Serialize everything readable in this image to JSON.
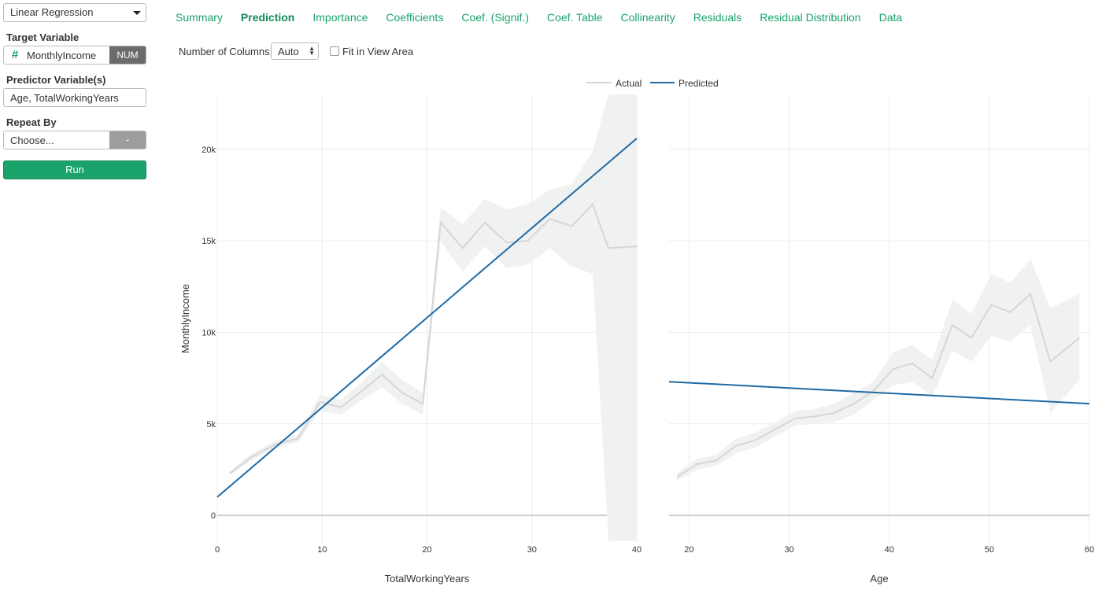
{
  "sidebar": {
    "model_select": "Linear Regression",
    "target_label": "Target Variable",
    "target_value": "MonthlyIncome",
    "target_type": "NUM",
    "target_icon": "hash-icon",
    "predictor_label": "Predictor Variable(s)",
    "predictor_value": "Age, TotalWorkingYears",
    "repeat_label": "Repeat By",
    "repeat_placeholder": "Choose...",
    "repeat_clear": "-",
    "run_label": "Run"
  },
  "tabs": [
    "Summary",
    "Prediction",
    "Importance",
    "Coefficients",
    "Coef. (Signif.)",
    "Coef. Table",
    "Collinearity",
    "Residuals",
    "Residual Distribution",
    "Data"
  ],
  "active_tab": "Prediction",
  "options": {
    "columns_label": "Number of Columns:",
    "columns_value": "Auto",
    "fit_label": "Fit in View Area",
    "fit_checked": false
  },
  "colors": {
    "accent": "#1aa36b",
    "actual": "#d6d6d6",
    "predicted": "#1f6aa5",
    "band": "#f0f2f1"
  },
  "chart_data": [
    {
      "type": "line",
      "xlabel": "TotalWorkingYears",
      "ylabel": "MonthlyIncome",
      "xlim": [
        0,
        40
      ],
      "ylim": [
        -1500,
        23000
      ],
      "xticks": [
        0,
        10,
        20,
        30,
        40
      ],
      "yticks": [
        0,
        5000,
        10000,
        15000,
        20000
      ],
      "ytick_labels": [
        "0",
        "5k",
        "10k",
        "15k",
        "20k"
      ],
      "grid": true,
      "legend": "top-center",
      "series": [
        {
          "name": "Actual",
          "x": [
            1.2,
            3.3,
            5.6,
            7.7,
            9.8,
            11.8,
            13.8,
            15.7,
            17.6,
            19.6,
            21.3,
            23.4,
            25.5,
            27.6,
            29.6,
            31.7,
            33.8,
            35.8,
            37.3,
            40
          ],
          "y": [
            2300,
            3200,
            3900,
            4200,
            6200,
            5900,
            6800,
            7700,
            6700,
            6100,
            16000,
            14600,
            16000,
            14900,
            15000,
            16200,
            15800,
            17000,
            14600,
            14700
          ],
          "lower": [
            2200,
            3000,
            3700,
            4000,
            5700,
            5500,
            6300,
            7000,
            6100,
            5500,
            15000,
            13300,
            14700,
            13500,
            13700,
            14600,
            13600,
            13200,
            -1400,
            -1400
          ],
          "upper": [
            2400,
            3400,
            4100,
            4400,
            6600,
            6300,
            7300,
            8400,
            7400,
            6700,
            16800,
            15900,
            17300,
            16700,
            17000,
            17800,
            18100,
            19900,
            23000,
            23000
          ]
        },
        {
          "name": "Predicted",
          "x": [
            0,
            40
          ],
          "y": [
            1000,
            20600
          ]
        }
      ]
    },
    {
      "type": "line",
      "xlabel": "Age",
      "ylabel": "MonthlyIncome",
      "xlim": [
        18,
        60
      ],
      "ylim": [
        -1500,
        23000
      ],
      "xticks": [
        20,
        30,
        40,
        50,
        60
      ],
      "yticks": [
        0,
        5000,
        10000,
        15000,
        20000
      ],
      "grid": true,
      "series": [
        {
          "name": "Actual",
          "x": [
            18.8,
            20.8,
            22.7,
            24.7,
            26.6,
            28.6,
            30.6,
            32.5,
            34.5,
            36.5,
            38.4,
            40.4,
            42.3,
            44.3,
            46.3,
            48.2,
            50.2,
            52.1,
            54.1,
            56.1,
            59.0
          ],
          "y": [
            2100,
            2800,
            3000,
            3800,
            4100,
            4700,
            5300,
            5400,
            5600,
            6100,
            6800,
            8000,
            8300,
            7500,
            10400,
            9700,
            11500,
            11100,
            12100,
            8400,
            9700
          ],
          "lower": [
            1900,
            2500,
            2700,
            3400,
            3700,
            4300,
            4900,
            5000,
            5100,
            5500,
            6300,
            7100,
            7300,
            6500,
            9000,
            8400,
            9800,
            9500,
            10400,
            5600,
            7400
          ],
          "upper": [
            2300,
            3100,
            3300,
            4200,
            4500,
            5100,
            5700,
            5800,
            6100,
            6700,
            7300,
            8900,
            9300,
            8500,
            11800,
            11000,
            13200,
            12700,
            14000,
            11300,
            12100
          ]
        },
        {
          "name": "Predicted",
          "x": [
            18,
            60
          ],
          "y": [
            7300,
            6100
          ]
        }
      ]
    }
  ]
}
